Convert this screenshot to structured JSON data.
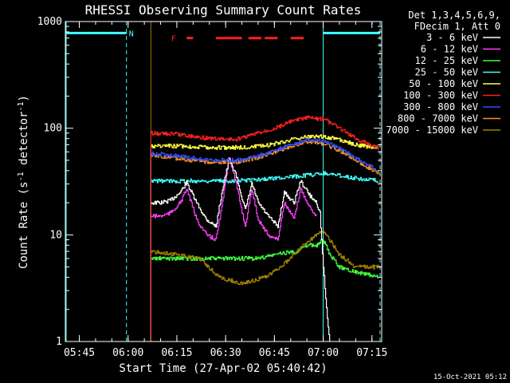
{
  "chart_data": {
    "type": "line",
    "title": "RHESSI Observing Summary Count Rates",
    "xlabel": "Start Time (27-Apr-02 05:40:42)",
    "ylabel": "Count Rate (s-1 detector-1)",
    "ylabel_parts": {
      "base": "Count Rate (s",
      "sup1": "-1",
      "mid": " detector",
      "sup2": "-1",
      "end": ")"
    },
    "y_scale": "log",
    "ylim": [
      1,
      1000
    ],
    "xlim": [
      "05:40:42",
      "07:18:00"
    ],
    "x_ticks": [
      {
        "t": "05:45",
        "label": "05:45"
      },
      {
        "t": "06:00",
        "label": "06:00"
      },
      {
        "t": "06:15",
        "label": "06:15"
      },
      {
        "t": "06:30",
        "label": "06:30"
      },
      {
        "t": "06:45",
        "label": "06:45"
      },
      {
        "t": "07:00",
        "label": "07:00"
      },
      {
        "t": "07:15",
        "label": "07:15"
      }
    ],
    "y_ticks": [
      {
        "v": 1,
        "label": "1"
      },
      {
        "v": 10,
        "label": "10"
      },
      {
        "v": 100,
        "label": "100"
      },
      {
        "v": 1000,
        "label": "1000"
      }
    ],
    "legend": {
      "placement": "right",
      "header": [
        "Det 1,3,4,5,6,9,",
        "FDecim 1, Att 0"
      ]
    },
    "series": [
      {
        "name": "3 - 6 keV",
        "color": "#ffffff",
        "x": [
          "06:07",
          "06:10",
          "06:13",
          "06:16",
          "06:18",
          "06:21",
          "06:24",
          "06:27",
          "06:29",
          "06:31",
          "06:33",
          "06:36",
          "06:38",
          "06:40",
          "06:43",
          "06:46",
          "06:48",
          "06:51",
          "06:53",
          "06:56",
          "06:58",
          "06:59",
          "07:00",
          "07:01",
          "07:02"
        ],
        "y": [
          20,
          20,
          21,
          25,
          31,
          20,
          14,
          12,
          27,
          50,
          38,
          17,
          30,
          20,
          15,
          12,
          25,
          20,
          32,
          23,
          20,
          16,
          5,
          2,
          1
        ]
      },
      {
        "name": "6 - 12 keV",
        "color": "#ff40ff",
        "x": [
          "06:07",
          "06:10",
          "06:13",
          "06:16",
          "06:18",
          "06:21",
          "06:24",
          "06:27",
          "06:29",
          "06:31",
          "06:33",
          "06:36",
          "06:38",
          "06:40",
          "06:43",
          "06:46",
          "06:48",
          "06:51",
          "06:53",
          "06:56",
          "06:58"
        ],
        "y": [
          15,
          15,
          16,
          20,
          27,
          14,
          10,
          9,
          20,
          55,
          32,
          12,
          27,
          14,
          10,
          9,
          20,
          14,
          27,
          18,
          15
        ]
      },
      {
        "name": "12 - 25 keV",
        "color": "#40ff40",
        "x": [
          "06:07",
          "06:15",
          "06:25",
          "06:35",
          "06:40",
          "06:45",
          "06:48",
          "06:52",
          "06:55",
          "06:58",
          "07:00",
          "07:02",
          "07:05",
          "07:10",
          "07:17"
        ],
        "y": [
          6,
          6,
          6,
          6,
          6,
          6.5,
          6.8,
          7,
          8,
          8,
          9,
          6.5,
          5,
          4.5,
          4
        ]
      },
      {
        "name": "25 - 50 keV",
        "color": "#40ffff",
        "x": [
          "06:07",
          "06:20",
          "06:30",
          "06:40",
          "06:50",
          "06:58",
          "07:00",
          "07:05",
          "07:10",
          "07:17"
        ],
        "y": [
          32,
          32,
          32,
          33,
          35,
          37,
          38,
          36,
          34,
          32
        ]
      },
      {
        "name": "50 - 100 keV",
        "color": "#ffff40",
        "x": [
          "06:07",
          "06:15",
          "06:25",
          "06:35",
          "06:42",
          "06:50",
          "06:56",
          "07:00",
          "07:05",
          "07:10",
          "07:17"
        ],
        "y": [
          68,
          68,
          66,
          66,
          68,
          78,
          84,
          84,
          78,
          70,
          65
        ]
      },
      {
        "name": "100 - 300 keV",
        "color": "#ff2020",
        "x": [
          "06:07",
          "06:15",
          "06:25",
          "06:33",
          "06:40",
          "06:45",
          "06:50",
          "06:55",
          "07:00",
          "07:05",
          "07:10",
          "07:17"
        ],
        "y": [
          90,
          88,
          80,
          78,
          90,
          100,
          115,
          125,
          122,
          100,
          80,
          65
        ]
      },
      {
        "name": "300 - 800 keV",
        "color": "#3050ff",
        "x": [
          "06:07",
          "06:15",
          "06:25",
          "06:33",
          "06:40",
          "06:45",
          "06:50",
          "06:55",
          "07:00",
          "07:05",
          "07:10",
          "07:17"
        ],
        "y": [
          58,
          55,
          50,
          50,
          55,
          62,
          70,
          78,
          75,
          65,
          52,
          40
        ]
      },
      {
        "name": "800 - 7000 keV",
        "color": "#ff9020",
        "x": [
          "06:07",
          "06:15",
          "06:25",
          "06:33",
          "06:40",
          "06:45",
          "06:50",
          "06:55",
          "07:00",
          "07:05",
          "07:10",
          "07:17"
        ],
        "y": [
          56,
          52,
          48,
          48,
          53,
          60,
          68,
          75,
          72,
          62,
          50,
          38
        ]
      },
      {
        "name": "7000 - 15000 keV",
        "color": "#a08000",
        "x": [
          "06:07",
          "06:15",
          "06:22",
          "06:28",
          "06:35",
          "06:42",
          "06:47",
          "06:52",
          "06:56",
          "07:00",
          "07:02",
          "07:05",
          "07:10",
          "07:17"
        ],
        "y": [
          7,
          6.5,
          6,
          4,
          3.5,
          4,
          5,
          7,
          9,
          11,
          9,
          6.5,
          5,
          5
        ]
      }
    ],
    "flags": {
      "N": {
        "label": "N",
        "color": "#40ffff",
        "level": 780,
        "intervals": [
          [
            "05:40:42",
            "05:59:30"
          ],
          [
            "07:00:00",
            "07:17:30"
          ]
        ],
        "markers": [
          "05:59:30",
          "07:17:30"
        ],
        "label_at": "06:01"
      },
      "F": {
        "label": "F",
        "color": "#ff2020",
        "level": 700,
        "label_at": "06:14",
        "intervals": [
          [
            "06:18",
            "06:20"
          ],
          [
            "06:27",
            "06:35"
          ],
          [
            "06:37",
            "06:41"
          ],
          [
            "06:42",
            "06:46"
          ],
          [
            "06:50",
            "06:54"
          ]
        ]
      }
    },
    "saa_line": {
      "time": "06:07",
      "color": "#a08000"
    },
    "night_line": {
      "time": "07:00",
      "color": "#40ffff"
    }
  },
  "timestamp": "15-Oct-2021 05:12"
}
